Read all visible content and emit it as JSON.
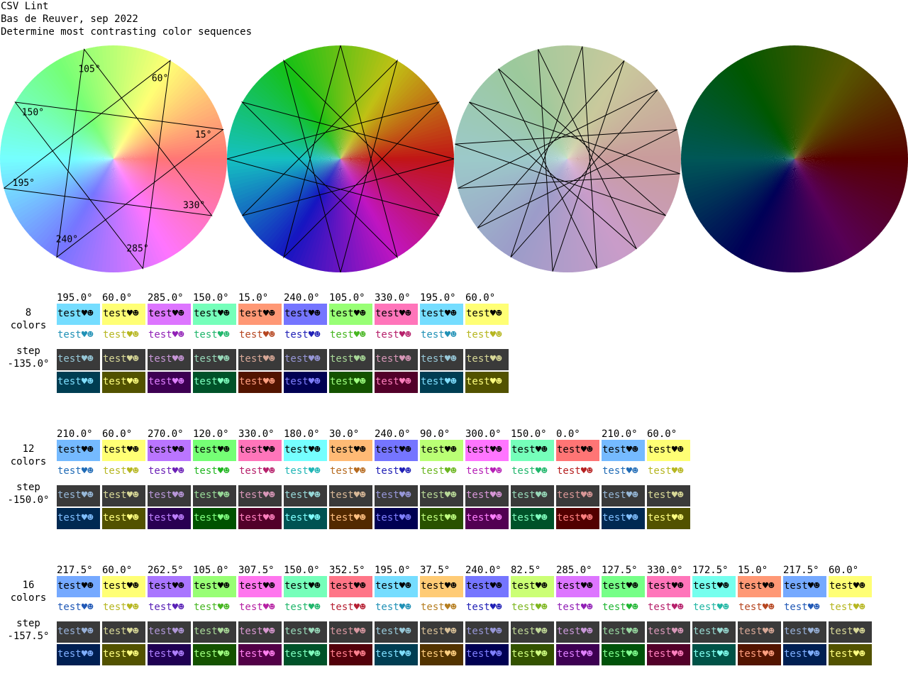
{
  "header": {
    "app": "CSV Lint",
    "author": "Bas de Reuver, sep 2022",
    "description": "Determine most contrasting color sequences"
  },
  "sample_text": "test♥☻",
  "wheels": [
    {
      "name": "pastel-wheel",
      "style": "pastel",
      "degree_labels": [
        {
          "text": "105°",
          "angle": 105
        },
        {
          "text": "60°",
          "angle": 60
        },
        {
          "text": "150°",
          "angle": 150
        },
        {
          "text": "15°",
          "angle": 15
        },
        {
          "text": "195°",
          "angle": 195
        },
        {
          "text": "330°",
          "angle": 330
        },
        {
          "text": "240°",
          "angle": 240
        },
        {
          "text": "285°",
          "angle": 285
        }
      ],
      "star_angles": [
        195,
        60,
        285,
        150,
        15,
        240,
        105,
        330,
        195
      ]
    },
    {
      "name": "saturated-wheel",
      "style": "saturated",
      "degree_labels": [],
      "star_angles": [
        210,
        60,
        270,
        120,
        330,
        180,
        30,
        240,
        90,
        300,
        150,
        0,
        210
      ]
    },
    {
      "name": "muted-wheel",
      "style": "muted",
      "degree_labels": [],
      "star_angles": [
        217.5,
        60,
        262.5,
        105,
        307.5,
        150,
        352.5,
        195,
        37.5,
        240,
        82.5,
        285,
        127.5,
        330,
        172.5,
        15,
        217.5
      ]
    },
    {
      "name": "dark-wheel",
      "style": "dark",
      "degree_labels": [],
      "star_angles": []
    }
  ],
  "sections": [
    {
      "count_label": [
        "8",
        "colors"
      ],
      "step_label": [
        "step",
        "-135.0°"
      ],
      "hues": [
        195,
        60,
        285,
        150,
        15,
        240,
        105,
        330,
        195,
        60
      ],
      "degree_texts": [
        "195.0°",
        "60.0°",
        "285.0°",
        "150.0°",
        "15.0°",
        "240.0°",
        "105.0°",
        "330.0°",
        "195.0°",
        "60.0°"
      ]
    },
    {
      "count_label": [
        "12",
        "colors"
      ],
      "step_label": [
        "step",
        "-150.0°"
      ],
      "hues": [
        210,
        60,
        270,
        120,
        330,
        180,
        30,
        240,
        90,
        300,
        150,
        0,
        210,
        60
      ],
      "degree_texts": [
        "210.0°",
        "60.0°",
        "270.0°",
        "120.0°",
        "330.0°",
        "180.0°",
        "30.0°",
        "240.0°",
        "90.0°",
        "300.0°",
        "150.0°",
        "0.0°",
        "210.0°",
        "60.0°"
      ]
    },
    {
      "count_label": [
        "16",
        "colors"
      ],
      "step_label": [
        "step",
        "-157.5°"
      ],
      "hues": [
        217.5,
        60,
        262.5,
        105,
        307.5,
        150,
        352.5,
        195,
        37.5,
        240,
        82.5,
        285,
        127.5,
        330,
        172.5,
        15,
        217.5,
        60
      ],
      "degree_texts": [
        "217.5°",
        "60.0°",
        "262.5°",
        "105.0°",
        "307.5°",
        "150.0°",
        "352.5°",
        "195.0°",
        "37.5°",
        "240.0°",
        "82.5°",
        "285.0°",
        "127.5°",
        "330.0°",
        "172.5°",
        "15.0°",
        "217.5°",
        "60.0°"
      ]
    }
  ],
  "colors": {
    "background": "#ffffff",
    "text": "#000000",
    "dark_swatch_bg": "#3a3a3a",
    "star_line": "#000000"
  }
}
